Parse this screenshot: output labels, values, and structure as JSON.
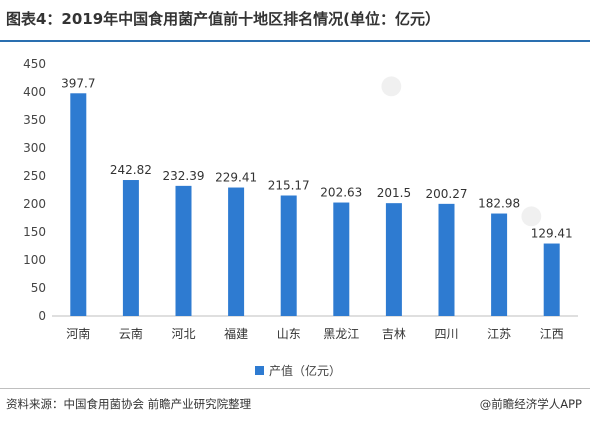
{
  "title": "图表4：2019年中国食用菌产值前十地区排名情况(单位：亿元）",
  "colors": {
    "bar": "#2e7bd1",
    "axis": "#bfbfbf",
    "grid": "#e6e6e6",
    "text": "#333333",
    "rule": "#2a6fb0"
  },
  "legend": {
    "label": "产值（亿元）"
  },
  "footer": {
    "source": "资料来源：中国食用菌协会 前瞻产业研究院整理",
    "brand": "@前瞻经济学人APP"
  },
  "chart_data": {
    "type": "bar",
    "categories": [
      "河南",
      "云南",
      "河北",
      "福建",
      "山东",
      "黑龙江",
      "吉林",
      "四川",
      "江苏",
      "江西"
    ],
    "series": [
      {
        "name": "产值（亿元）",
        "values": [
          397.7,
          242.82,
          232.39,
          229.41,
          215.17,
          202.63,
          201.5,
          200.27,
          182.98,
          129.41
        ]
      }
    ],
    "data_labels": [
      "397.7",
      "242.82",
      "232.39",
      "229.41",
      "215.17",
      "202.63",
      "201.5",
      "200.27",
      "182.98",
      "129.41"
    ],
    "ylim": [
      0,
      450
    ],
    "yticks": [
      0,
      50,
      100,
      150,
      200,
      250,
      300,
      350,
      400,
      450
    ],
    "grid": false,
    "legend_position": "bottom"
  }
}
